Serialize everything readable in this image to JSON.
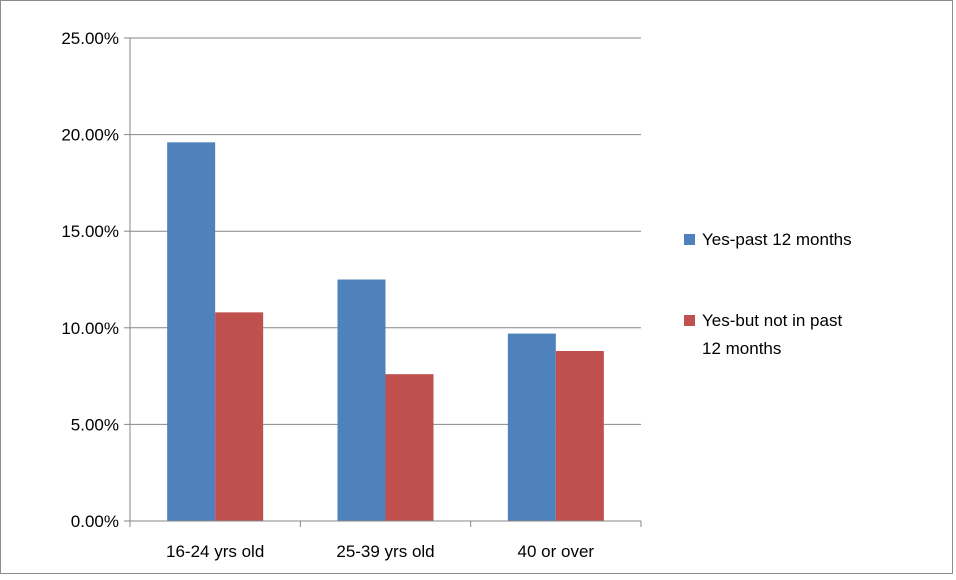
{
  "chart_data": {
    "type": "bar",
    "title": "",
    "xlabel": "",
    "ylabel": "",
    "categories": [
      "16-24 yrs old",
      "25-39 yrs old",
      "40 or over"
    ],
    "series": [
      {
        "name": "Yes-past 12 months",
        "values": [
          19.6,
          12.5,
          9.7
        ],
        "color": "#4f81bd"
      },
      {
        "name": "Yes-but not in past 12 months",
        "values": [
          10.8,
          7.6,
          8.8
        ],
        "color": "#c0504d"
      }
    ],
    "ylim": [
      0,
      25
    ],
    "yticks": [
      0,
      5,
      10,
      15,
      20,
      25
    ],
    "ytick_labels": [
      "0.00%",
      "5.00%",
      "10.00%",
      "15.00%",
      "20.00%",
      "25.00%"
    ],
    "grid": true,
    "legend_position": "right"
  }
}
